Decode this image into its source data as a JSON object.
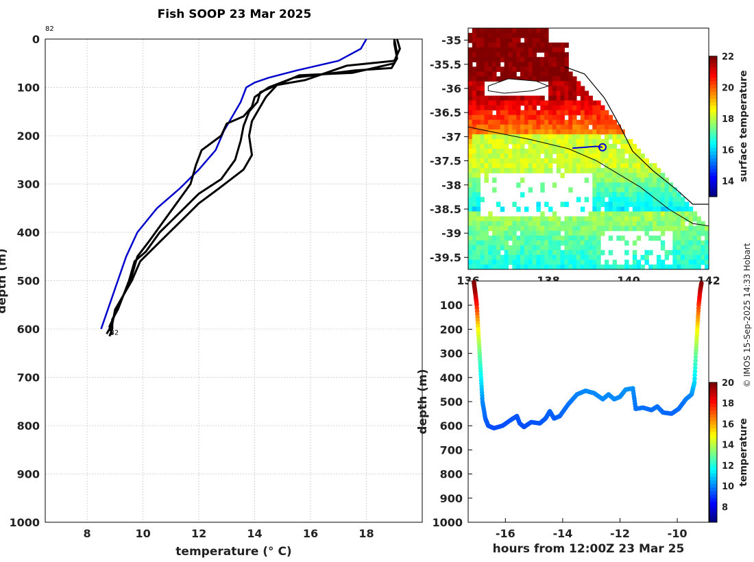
{
  "page": {
    "title": "Fish SOOP 23 Mar 2025",
    "credit": "© IMOS 15-Sep-2025 14:33 Hobart"
  },
  "chart_data": [
    {
      "type": "line",
      "name": "temperature-profile",
      "xlabel": "temperature (° C)",
      "ylabel": "depth (m)",
      "xlim": [
        6.5,
        20
      ],
      "ylim": [
        0,
        1000
      ],
      "xticks": [
        "8",
        "10",
        "12",
        "14",
        "16",
        "18"
      ],
      "yticks": [
        "0",
        "100",
        "200",
        "300",
        "400",
        "500",
        "600",
        "700",
        "800",
        "900",
        "1000"
      ],
      "annotations": [
        "82",
        "82"
      ],
      "series": [
        {
          "name": "reference",
          "color": "#0000cc",
          "points": [
            [
              18.0,
              0
            ],
            [
              17.8,
              20
            ],
            [
              17.0,
              45
            ],
            [
              15.5,
              65
            ],
            [
              14.5,
              80
            ],
            [
              14.0,
              90
            ],
            [
              13.7,
              100
            ],
            [
              13.5,
              130
            ],
            [
              13.2,
              160
            ],
            [
              12.9,
              190
            ],
            [
              12.6,
              230
            ],
            [
              12.0,
              270
            ],
            [
              11.3,
              310
            ],
            [
              10.5,
              350
            ],
            [
              9.8,
              400
            ],
            [
              9.4,
              450
            ],
            [
              9.1,
              500
            ],
            [
              8.8,
              550
            ],
            [
              8.5,
              600
            ]
          ]
        },
        {
          "name": "cast-1",
          "color": "#000000",
          "points": [
            [
              19.0,
              0
            ],
            [
              19.0,
              10
            ],
            [
              19.1,
              40
            ],
            [
              18.9,
              60
            ],
            [
              17.6,
              65
            ],
            [
              15.4,
              80
            ],
            [
              14.5,
              100
            ],
            [
              14.0,
              120
            ],
            [
              13.9,
              140
            ],
            [
              13.6,
              160
            ],
            [
              13.0,
              175
            ],
            [
              12.8,
              200
            ],
            [
              12.1,
              230
            ],
            [
              11.9,
              260
            ],
            [
              11.7,
              300
            ],
            [
              11.2,
              340
            ],
            [
              10.7,
              380
            ],
            [
              10.2,
              420
            ],
            [
              9.8,
              450
            ],
            [
              9.6,
              490
            ],
            [
              9.3,
              530
            ],
            [
              9.1,
              560
            ],
            [
              8.9,
              580
            ],
            [
              8.9,
              600
            ],
            [
              8.8,
              615
            ]
          ]
        },
        {
          "name": "cast-2",
          "color": "#000000",
          "points": [
            [
              19.0,
              0
            ],
            [
              19.1,
              30
            ],
            [
              19.0,
              50
            ],
            [
              17.5,
              70
            ],
            [
              15.6,
              75
            ],
            [
              15.0,
              90
            ],
            [
              14.2,
              110
            ],
            [
              14.1,
              130
            ],
            [
              13.8,
              150
            ],
            [
              13.6,
              180
            ],
            [
              13.5,
              210
            ],
            [
              13.3,
              250
            ],
            [
              12.8,
              290
            ],
            [
              12.0,
              320
            ],
            [
              11.3,
              360
            ],
            [
              10.6,
              400
            ],
            [
              10.1,
              440
            ],
            [
              9.7,
              460
            ],
            [
              9.5,
              500
            ],
            [
              9.3,
              530
            ],
            [
              9.0,
              560
            ],
            [
              8.9,
              590
            ],
            [
              8.7,
              610
            ]
          ]
        },
        {
          "name": "cast-3",
          "color": "#000000",
          "points": [
            [
              19.1,
              0
            ],
            [
              19.2,
              20
            ],
            [
              19.0,
              45
            ],
            [
              17.3,
              55
            ],
            [
              15.8,
              85
            ],
            [
              14.8,
              95
            ],
            [
              14.4,
              120
            ],
            [
              14.1,
              150
            ],
            [
              13.9,
              170
            ],
            [
              13.8,
              200
            ],
            [
              13.9,
              240
            ],
            [
              13.6,
              270
            ],
            [
              12.7,
              310
            ],
            [
              12.0,
              340
            ],
            [
              11.3,
              380
            ],
            [
              10.6,
              420
            ],
            [
              9.9,
              460
            ],
            [
              9.6,
              500
            ],
            [
              9.2,
              540
            ],
            [
              9.0,
              570
            ],
            [
              8.8,
              595
            ],
            [
              8.9,
              612
            ]
          ]
        }
      ]
    },
    {
      "type": "heatmap",
      "name": "surface-temperature-map",
      "xlabel": "",
      "ylabel": "",
      "xlim": [
        136,
        142
      ],
      "ylim": [
        -39.75,
        -34.75
      ],
      "xticks": [
        "136",
        "138",
        "140",
        "142"
      ],
      "yticks": [
        "-35",
        "-35.5",
        "-36",
        "-36.5",
        "-37",
        "-37.5",
        "-38",
        "-38.5",
        "-39",
        "-39.5"
      ],
      "colorbar_label": "surface temperature",
      "colorbar_range": [
        13,
        22
      ],
      "colorbar_ticks": [
        "14",
        "16",
        "18",
        "20",
        "22"
      ],
      "track": [
        [
          138.6,
          -37.24
        ],
        [
          139.2,
          -37.2
        ],
        [
          139.35,
          -37.22
        ]
      ]
    },
    {
      "type": "scatter",
      "name": "depth-time-track",
      "xlabel": "hours from 12:00Z 23 Mar 25",
      "ylabel": "depth (m)",
      "xlim": [
        -17.3,
        -8.9
      ],
      "ylim": [
        0,
        1000
      ],
      "xticks": [
        "-16",
        "-14",
        "-12",
        "-10"
      ],
      "yticks": [
        "100",
        "200",
        "300",
        "400",
        "500",
        "600",
        "700",
        "800",
        "900",
        "1000"
      ],
      "colorbar_label": "temperature",
      "colorbar_range": [
        6.5,
        20
      ],
      "colorbar_ticks": [
        "8",
        "10",
        "12",
        "14",
        "16",
        "18",
        "20"
      ],
      "points": [
        [
          -17.1,
          5,
          20
        ],
        [
          -17.05,
          50,
          19.5
        ],
        [
          -17.0,
          100,
          18
        ],
        [
          -16.95,
          200,
          15
        ],
        [
          -16.9,
          300,
          13
        ],
        [
          -16.85,
          400,
          11.5
        ],
        [
          -16.8,
          500,
          10
        ],
        [
          -16.7,
          570,
          9.5
        ],
        [
          -16.6,
          600,
          9.3
        ],
        [
          -16.4,
          610,
          9.2
        ],
        [
          -16.1,
          600,
          9.2
        ],
        [
          -15.8,
          575,
          9.3
        ],
        [
          -15.6,
          560,
          9.3
        ],
        [
          -15.5,
          590,
          9.3
        ],
        [
          -15.35,
          605,
          9.2
        ],
        [
          -15.1,
          585,
          9.3
        ],
        [
          -14.8,
          590,
          9.3
        ],
        [
          -14.6,
          570,
          9.4
        ],
        [
          -14.45,
          540,
          9.5
        ],
        [
          -14.3,
          570,
          9.4
        ],
        [
          -14.1,
          560,
          9.5
        ],
        [
          -13.8,
          510,
          9.7
        ],
        [
          -13.5,
          470,
          9.9
        ],
        [
          -13.2,
          455,
          10
        ],
        [
          -12.9,
          465,
          10
        ],
        [
          -12.6,
          490,
          10
        ],
        [
          -12.4,
          470,
          10
        ],
        [
          -12.2,
          490,
          10
        ],
        [
          -12.0,
          480,
          10
        ],
        [
          -11.8,
          450,
          10.1
        ],
        [
          -11.55,
          445,
          10.1
        ],
        [
          -11.45,
          530,
          9.7
        ],
        [
          -11.2,
          525,
          9.7
        ],
        [
          -10.9,
          535,
          9.6
        ],
        [
          -10.7,
          520,
          9.7
        ],
        [
          -10.5,
          545,
          9.6
        ],
        [
          -10.2,
          550,
          9.5
        ],
        [
          -9.95,
          530,
          9.6
        ],
        [
          -9.7,
          490,
          9.8
        ],
        [
          -9.5,
          470,
          10
        ],
        [
          -9.4,
          420,
          11
        ],
        [
          -9.35,
          300,
          13
        ],
        [
          -9.3,
          200,
          15
        ],
        [
          -9.25,
          100,
          17.5
        ],
        [
          -9.2,
          40,
          19
        ],
        [
          -9.15,
          5,
          20
        ]
      ]
    }
  ]
}
